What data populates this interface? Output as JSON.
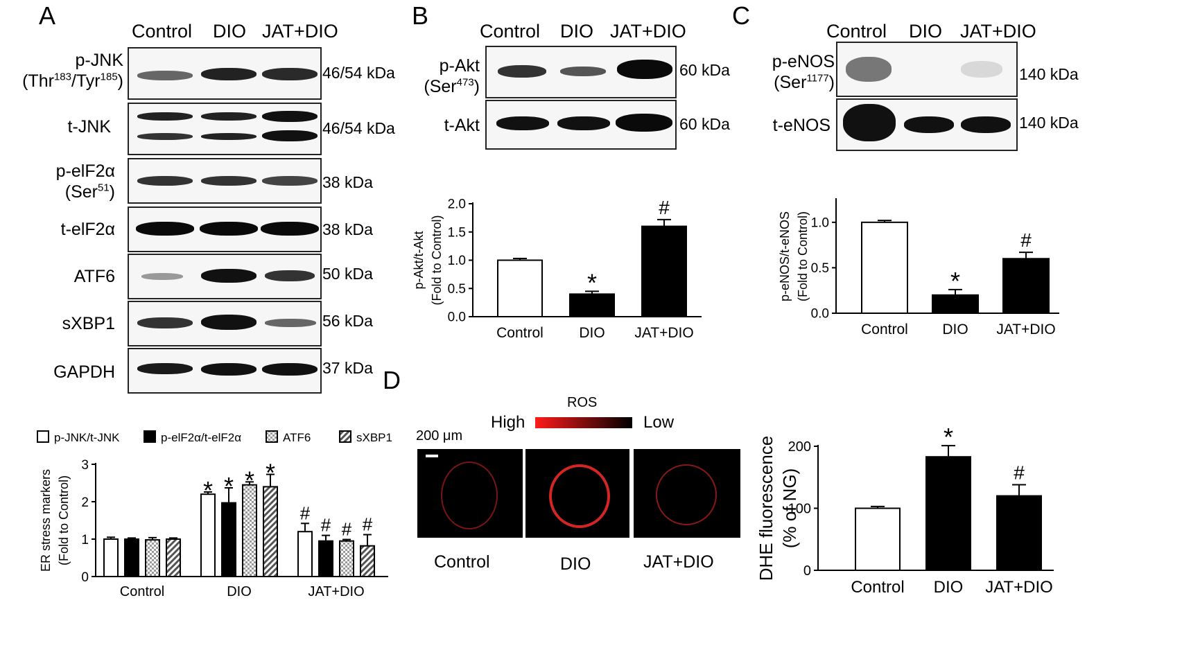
{
  "panelA": {
    "letter": "A",
    "lanes": [
      "Control",
      "DIO",
      "JAT+DIO"
    ],
    "blots": [
      {
        "name": "p-JNK",
        "label_main": "p-JNK",
        "label_sub_pre": "(Thr",
        "sup1": "183",
        "label_sub_mid": "/Tyr",
        "sup2": "185",
        "label_sub_post": ")",
        "kda": "46/54 kDa"
      },
      {
        "name": "t-JNK",
        "label_main": "t-JNK",
        "kda": "46/54 kDa"
      },
      {
        "name": "p-eIF2a",
        "label_main": "p-elF2α",
        "label_sub_pre": "(Ser",
        "sup1": "51",
        "label_sub_post": ")",
        "kda": "38 kDa"
      },
      {
        "name": "t-eIF2a",
        "label_main": "t-elF2α",
        "kda": "38 kDa"
      },
      {
        "name": "ATF6",
        "label_main": "ATF6",
        "kda": "50 kDa"
      },
      {
        "name": "sXBP1",
        "label_main": "sXBP1",
        "kda": "56 kDa"
      },
      {
        "name": "GAPDH",
        "label_main": "GAPDH",
        "kda": "37 kDa"
      }
    ]
  },
  "panelB": {
    "letter": "B",
    "lanes": [
      "Control",
      "DIO",
      "JAT+DIO"
    ],
    "blots": [
      {
        "label_main": "p-Akt",
        "label_sub_pre": "(Ser",
        "sup1": "473",
        "label_sub_post": ")",
        "kda": "60 kDa"
      },
      {
        "label_main": "t-Akt",
        "kda": "60 kDa"
      }
    ]
  },
  "panelC": {
    "letter": "C",
    "lanes": [
      "Control",
      "DIO",
      "JAT+DIO"
    ],
    "blots": [
      {
        "label_main": "p-eNOS",
        "label_sub_pre": "(Ser",
        "sup1": "1177",
        "label_sub_post": ")",
        "kda": "140 kDa"
      },
      {
        "label_main": "t-eNOS",
        "kda": "140 kDa"
      }
    ]
  },
  "panelD": {
    "letter": "D",
    "ros_label": "ROS",
    "high_label": "High",
    "low_label": "Low",
    "scale_label": "200 μm",
    "image_labels": [
      "Control",
      "DIO",
      "JAT+DIO"
    ]
  },
  "chart_data": [
    {
      "id": "akt",
      "type": "bar",
      "categories": [
        "Control",
        "DIO",
        "JAT+DIO"
      ],
      "values": [
        1.0,
        0.4,
        1.6
      ],
      "errors": [
        0.03,
        0.05,
        0.12
      ],
      "fills": [
        "#ffffff",
        "#000000",
        "#000000"
      ],
      "annotations": [
        "",
        "*",
        "#"
      ],
      "ylabel_lines": [
        "p-Akt/t-Akt",
        "(Fold to Control)"
      ],
      "ylim": [
        0,
        2.0
      ],
      "yticks": [
        0.0,
        0.5,
        1.0,
        1.5,
        2.0
      ],
      "ytick_labels": [
        "0.0",
        "0.5",
        "1.0",
        "1.5",
        "2.0"
      ]
    },
    {
      "id": "enos",
      "type": "bar",
      "categories": [
        "Control",
        "DIO",
        "JAT+DIO"
      ],
      "values": [
        1.0,
        0.2,
        0.6
      ],
      "errors": [
        0.02,
        0.06,
        0.07
      ],
      "fills": [
        "#ffffff",
        "#000000",
        "#000000"
      ],
      "annotations": [
        "",
        "*",
        "#"
      ],
      "ylabel_lines": [
        "p-eNOS/t-eNOS",
        "(Fold to Control)"
      ],
      "ylim": [
        0,
        1.25
      ],
      "yticks": [
        0.0,
        0.5,
        1.0
      ],
      "ytick_labels": [
        "0.0",
        "0.5",
        "1.0"
      ]
    },
    {
      "id": "er",
      "type": "bar",
      "categories": [
        "Control",
        "DIO",
        "JAT+DIO"
      ],
      "series": [
        {
          "name": "p-JNK/t-JNK",
          "fill": "white",
          "values": [
            1.0,
            2.2,
            1.2
          ],
          "errors": [
            0.05,
            0.06,
            0.22
          ],
          "annotations": [
            "",
            "*",
            "#"
          ]
        },
        {
          "name": "p-elF2α/t-elF2α",
          "fill": "black",
          "values": [
            1.0,
            1.97,
            0.95
          ],
          "errors": [
            0.03,
            0.4,
            0.15
          ],
          "annotations": [
            "",
            "*",
            "#"
          ]
        },
        {
          "name": "ATF6",
          "fill": "checker",
          "values": [
            0.98,
            2.45,
            0.95
          ],
          "errors": [
            0.06,
            0.08,
            0.04
          ],
          "annotations": [
            "",
            "*",
            "#"
          ]
        },
        {
          "name": "sXBP1",
          "fill": "hatch",
          "values": [
            1.0,
            2.4,
            0.82
          ],
          "errors": [
            0.03,
            0.33,
            0.3
          ],
          "annotations": [
            "",
            "*",
            "#"
          ]
        }
      ],
      "ylabel_lines": [
        "ER stress markers",
        "(Fold to Control)"
      ],
      "ylim": [
        0,
        3
      ],
      "yticks": [
        0,
        1,
        2,
        3
      ],
      "ytick_labels": [
        "0",
        "1",
        "2",
        "3"
      ],
      "legend_placement": "top"
    },
    {
      "id": "dhe",
      "type": "bar",
      "categories": [
        "Control",
        "DIO",
        "JAT+DIO"
      ],
      "values": [
        100,
        183,
        120
      ],
      "errors": [
        3,
        18,
        18
      ],
      "fills": [
        "#ffffff",
        "#000000",
        "#000000"
      ],
      "annotations": [
        "",
        "*",
        "#"
      ],
      "ylabel_lines": [
        "DHE fluorescence",
        "(% of NG)"
      ],
      "ylim": [
        0,
        200
      ],
      "yticks": [
        0,
        100,
        200
      ],
      "ytick_labels": [
        "0",
        "100",
        "200"
      ]
    }
  ]
}
